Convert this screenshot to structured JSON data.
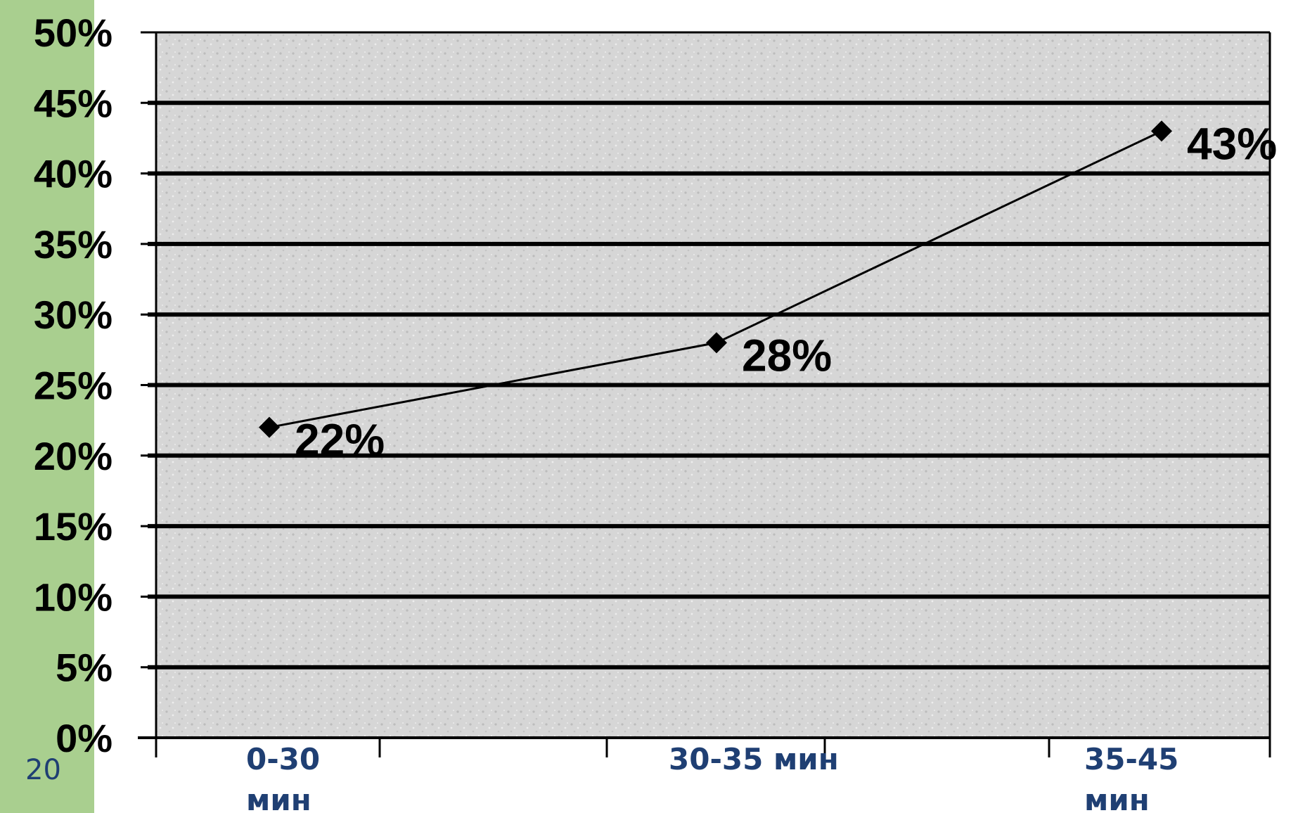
{
  "slide": {
    "page_number": "20"
  },
  "colors": {
    "green_bar": "#a9cf8f",
    "plot_fill": "#d8d8d8",
    "category_text": "#1f3f73",
    "line": "#000000"
  },
  "chart_data": {
    "type": "line",
    "categories": [
      [
        "0-30",
        "мин"
      ],
      [
        "30-35 мин"
      ],
      [
        "35-45",
        "мин"
      ]
    ],
    "values": [
      22,
      28,
      43
    ],
    "data_labels": [
      "22%",
      "28%",
      "43%"
    ],
    "y_ticks": [
      "0%",
      "5%",
      "10%",
      "15%",
      "20%",
      "25%",
      "30%",
      "35%",
      "40%",
      "45%",
      "50%"
    ],
    "ylim": [
      0,
      50
    ],
    "grid": true,
    "marker": "diamond",
    "legend": "none",
    "title": "",
    "xlabel": "",
    "ylabel": ""
  }
}
